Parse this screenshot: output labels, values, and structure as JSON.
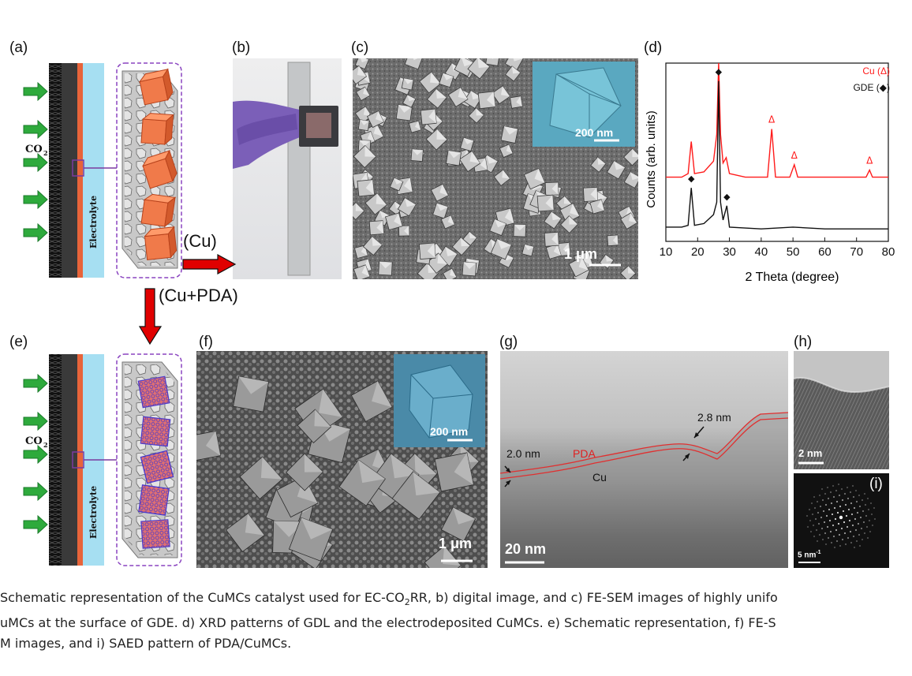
{
  "panel_labels": {
    "a": "(a)",
    "b": "(b)",
    "c": "(c)",
    "d": "(d)",
    "e": "(e)",
    "f": "(f)",
    "g": "(g)",
    "h": "(h)",
    "i": "(i)"
  },
  "schematic": {
    "co2_label": "CO",
    "co2_sub": "2",
    "electrolyte_label": "Electrolyte"
  },
  "arrows": {
    "cu_label": "(Cu)",
    "cu_pda_label": "(Cu+PDA)"
  },
  "sem_c": {
    "scale_main": "1 μm",
    "scale_inset": "200 nm"
  },
  "sem_f": {
    "scale_main": "1 μm",
    "scale_inset": "200 nm"
  },
  "tem_g": {
    "label_20": "2.0 nm",
    "label_28": "2.8 nm",
    "label_pda": "PDA",
    "label_cu": "Cu",
    "scale": "20 nm"
  },
  "tem_h": {
    "scale": "2 nm"
  },
  "saed_i": {
    "scale": "5 nm",
    "scale_sup": "-1"
  },
  "chart_data": {
    "type": "line",
    "xlabel": "2 Theta (degree)",
    "ylabel": "Counts (arb. units)",
    "xlim": [
      10,
      80
    ],
    "xticks": [
      10,
      20,
      30,
      40,
      50,
      60,
      70,
      80
    ],
    "grid": false,
    "legend_placement": "top-right",
    "series": [
      {
        "name": "Cu (Δ)",
        "color": "#ff1a1a",
        "marker": "Δ",
        "peaks_x": [
          43.3,
          50.4,
          74.1
        ],
        "x": [
          10,
          15,
          17,
          18,
          19,
          22,
          25,
          26,
          26.6,
          27.2,
          28,
          29,
          30,
          35,
          42,
          43.3,
          44.5,
          49,
          50.4,
          51.5,
          60,
          73,
          74.1,
          75,
          80
        ],
        "y": [
          0.36,
          0.36,
          0.38,
          0.56,
          0.38,
          0.39,
          0.45,
          0.6,
          1.0,
          0.6,
          0.44,
          0.47,
          0.38,
          0.36,
          0.36,
          0.63,
          0.36,
          0.36,
          0.43,
          0.36,
          0.36,
          0.36,
          0.4,
          0.36,
          0.36
        ]
      },
      {
        "name": "GDE (◆)",
        "color": "#111111",
        "marker": "◆",
        "peaks_x": [
          18.0,
          26.6,
          29.2
        ],
        "x": [
          10,
          15,
          17,
          18,
          19,
          22,
          25,
          26,
          26.6,
          27.2,
          28,
          29.2,
          30,
          40,
          50,
          60,
          70,
          80
        ],
        "y": [
          0.08,
          0.08,
          0.09,
          0.3,
          0.09,
          0.1,
          0.15,
          0.22,
          0.9,
          0.22,
          0.12,
          0.2,
          0.08,
          0.07,
          0.08,
          0.07,
          0.07,
          0.07
        ]
      }
    ]
  },
  "caption": {
    "line1_a": "Schematic representation of the CuMCs catalyst used for EC-CO",
    "line1_sub": "2",
    "line1_b": "RR, b) digital image, and c) FE-SEM images of highly unifo",
    "line2": "uMCs at the surface of GDE. d) XRD patterns of GDL and the electrodeposited CuMCs. e) Schematic representation, f) FE-S",
    "line3": "M images, and i) SAED pattern of PDA/CuMCs."
  }
}
